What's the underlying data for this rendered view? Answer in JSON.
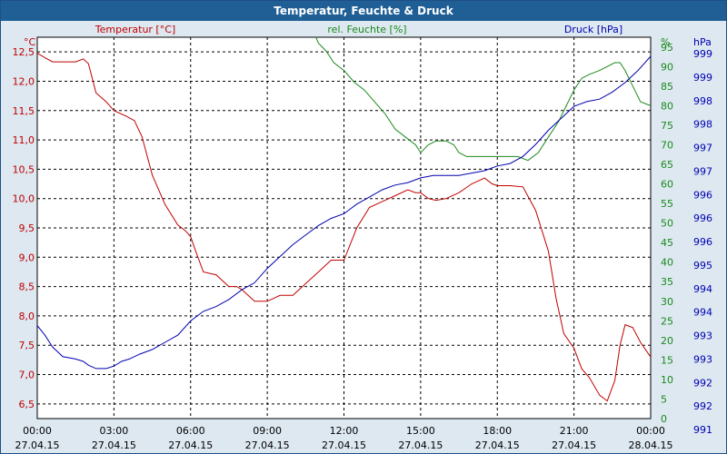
{
  "window": {
    "title": "Temperatur, Feuchte & Druck"
  },
  "colors": {
    "temperature": "#c00000",
    "humidity": "#1a8a1a",
    "pressure": "#0000b0",
    "grid": "#000000",
    "plot_bg": "#ffffff",
    "page_bg": "#dde8f1",
    "titlebar": "#1f5f95"
  },
  "chart_data": {
    "type": "line",
    "title": "Temperatur, Feuchte & Druck",
    "grid": true,
    "x_ticks": [
      {
        "time": "00:00",
        "date": "27.04.15"
      },
      {
        "time": "03:00",
        "date": "27.04.15"
      },
      {
        "time": "06:00",
        "date": "27.04.15"
      },
      {
        "time": "09:00",
        "date": "27.04.15"
      },
      {
        "time": "12:00",
        "date": "27.04.15"
      },
      {
        "time": "15:00",
        "date": "27.04.15"
      },
      {
        "time": "18:00",
        "date": "27.04.15"
      },
      {
        "time": "21:00",
        "date": "27.04.15"
      },
      {
        "time": "00:00",
        "date": "28.04.15"
      }
    ],
    "xlim": [
      0,
      24
    ],
    "axes": {
      "temperature": {
        "unit": "°C",
        "label": "Temperatur [°C]",
        "ylim": [
          6.25,
          12.75
        ],
        "ticks": [
          "6,5",
          "7,0",
          "7,5",
          "8,0",
          "8,5",
          "9,0",
          "9,5",
          "10,0",
          "10,5",
          "11,0",
          "11,5",
          "12,0",
          "12,5"
        ]
      },
      "humidity": {
        "unit": "%",
        "label": "rel. Feuchte [%]",
        "ylim": [
          0,
          97.5
        ],
        "ticks": [
          "0",
          "5",
          "10",
          "15",
          "20",
          "25",
          "30",
          "35",
          "40",
          "45",
          "50",
          "55",
          "60",
          "65",
          "70",
          "75",
          "80",
          "85",
          "90",
          "95"
        ]
      },
      "pressure": {
        "unit": "hPa",
        "label": "Druck [hPa]",
        "ylim": [
          991,
          999
        ],
        "ticks": [
          "991",
          "992",
          "992",
          "993",
          "993",
          "994",
          "994",
          "995",
          "996",
          "996",
          "996",
          "997",
          "997",
          "998",
          "998",
          "999",
          "999"
        ]
      }
    },
    "series": [
      {
        "name": "Temperatur [°C]",
        "axis": "temperature",
        "x": [
          0,
          0.3,
          0.6,
          1.0,
          1.5,
          1.8,
          2.0,
          2.3,
          2.7,
          3.0,
          3.5,
          3.8,
          4.1,
          4.5,
          5.0,
          5.5,
          5.8,
          6.0,
          6.2,
          6.5,
          7.0,
          7.5,
          7.8,
          8.0,
          8.5,
          9.0,
          9.5,
          10.0,
          10.5,
          11.0,
          11.5,
          12.0,
          12.5,
          13.0,
          13.5,
          14.0,
          14.5,
          14.8,
          15.0,
          15.3,
          15.6,
          16.0,
          16.5,
          17.0,
          17.5,
          17.8,
          18.0,
          18.5,
          19.0,
          19.5,
          20.0,
          20.3,
          20.6,
          21.0,
          21.3,
          21.6,
          22.0,
          22.3,
          22.6,
          22.8,
          23.0,
          23.3,
          23.6,
          24.0
        ],
        "values": [
          12.48,
          12.4,
          12.33,
          12.33,
          12.33,
          12.38,
          12.3,
          11.8,
          11.65,
          11.5,
          11.4,
          11.33,
          11.05,
          10.4,
          9.9,
          9.55,
          9.45,
          9.35,
          9.1,
          8.75,
          8.7,
          8.5,
          8.5,
          8.45,
          8.25,
          8.25,
          8.35,
          8.35,
          8.55,
          8.75,
          8.95,
          8.95,
          9.5,
          9.85,
          9.95,
          10.05,
          10.15,
          10.1,
          10.1,
          10.0,
          9.97,
          10.0,
          10.1,
          10.25,
          10.35,
          10.25,
          10.22,
          10.22,
          10.2,
          9.8,
          9.1,
          8.3,
          7.7,
          7.45,
          7.1,
          6.95,
          6.65,
          6.55,
          6.9,
          7.5,
          7.85,
          7.8,
          7.55,
          7.3
        ]
      },
      {
        "name": "rel. Feuchte [%]",
        "axis": "humidity",
        "x": [
          10.9,
          11.0,
          11.3,
          11.6,
          12.0,
          12.4,
          12.8,
          13.2,
          13.6,
          14.0,
          14.4,
          14.8,
          15.0,
          15.3,
          15.6,
          16.0,
          16.3,
          16.5,
          16.8,
          17.2,
          17.6,
          18.0,
          18.4,
          18.8,
          19.2,
          19.6,
          20.0,
          20.4,
          20.7,
          21.0,
          21.3,
          21.6,
          22.0,
          22.3,
          22.6,
          22.8,
          23.0,
          23.3,
          23.6,
          24.0
        ],
        "values": [
          97.5,
          96,
          94,
          91,
          89,
          86,
          84,
          81,
          78,
          74,
          72,
          70,
          68,
          70,
          71,
          71,
          70,
          68,
          67,
          67,
          67,
          67,
          67,
          67,
          66,
          68,
          72,
          76,
          80,
          84,
          87,
          88,
          89,
          90,
          91,
          91,
          89,
          85,
          81,
          80
        ]
      },
      {
        "name": "Druck [hPa]",
        "axis": "pressure",
        "x": [
          0,
          0.3,
          0.6,
          1.0,
          1.5,
          1.8,
          2.0,
          2.3,
          2.7,
          3.0,
          3.3,
          3.6,
          4.0,
          4.5,
          5.0,
          5.5,
          6.0,
          6.5,
          7.0,
          7.5,
          8.0,
          8.5,
          9.0,
          9.5,
          10.0,
          10.5,
          11.0,
          11.5,
          12.0,
          12.5,
          13.0,
          13.5,
          14.0,
          14.5,
          15.0,
          15.5,
          16.0,
          16.5,
          17.0,
          17.5,
          18.0,
          18.5,
          19.0,
          19.5,
          20.0,
          20.5,
          21.0,
          21.5,
          22.0,
          22.5,
          23.0,
          23.5,
          24.0
        ],
        "values": [
          992.95,
          992.75,
          992.5,
          992.3,
          992.25,
          992.2,
          992.12,
          992.05,
          992.05,
          992.1,
          992.2,
          992.25,
          992.35,
          992.45,
          992.6,
          992.75,
          993.05,
          993.25,
          993.35,
          993.5,
          993.7,
          993.85,
          994.15,
          994.4,
          994.65,
          994.85,
          995.05,
          995.2,
          995.3,
          995.5,
          995.65,
          995.8,
          995.9,
          995.95,
          996.05,
          996.1,
          996.1,
          996.1,
          996.15,
          996.2,
          996.3,
          996.35,
          996.5,
          996.75,
          997.05,
          997.3,
          997.55,
          997.65,
          997.7,
          997.85,
          998.05,
          998.3,
          998.6
        ]
      }
    ]
  }
}
